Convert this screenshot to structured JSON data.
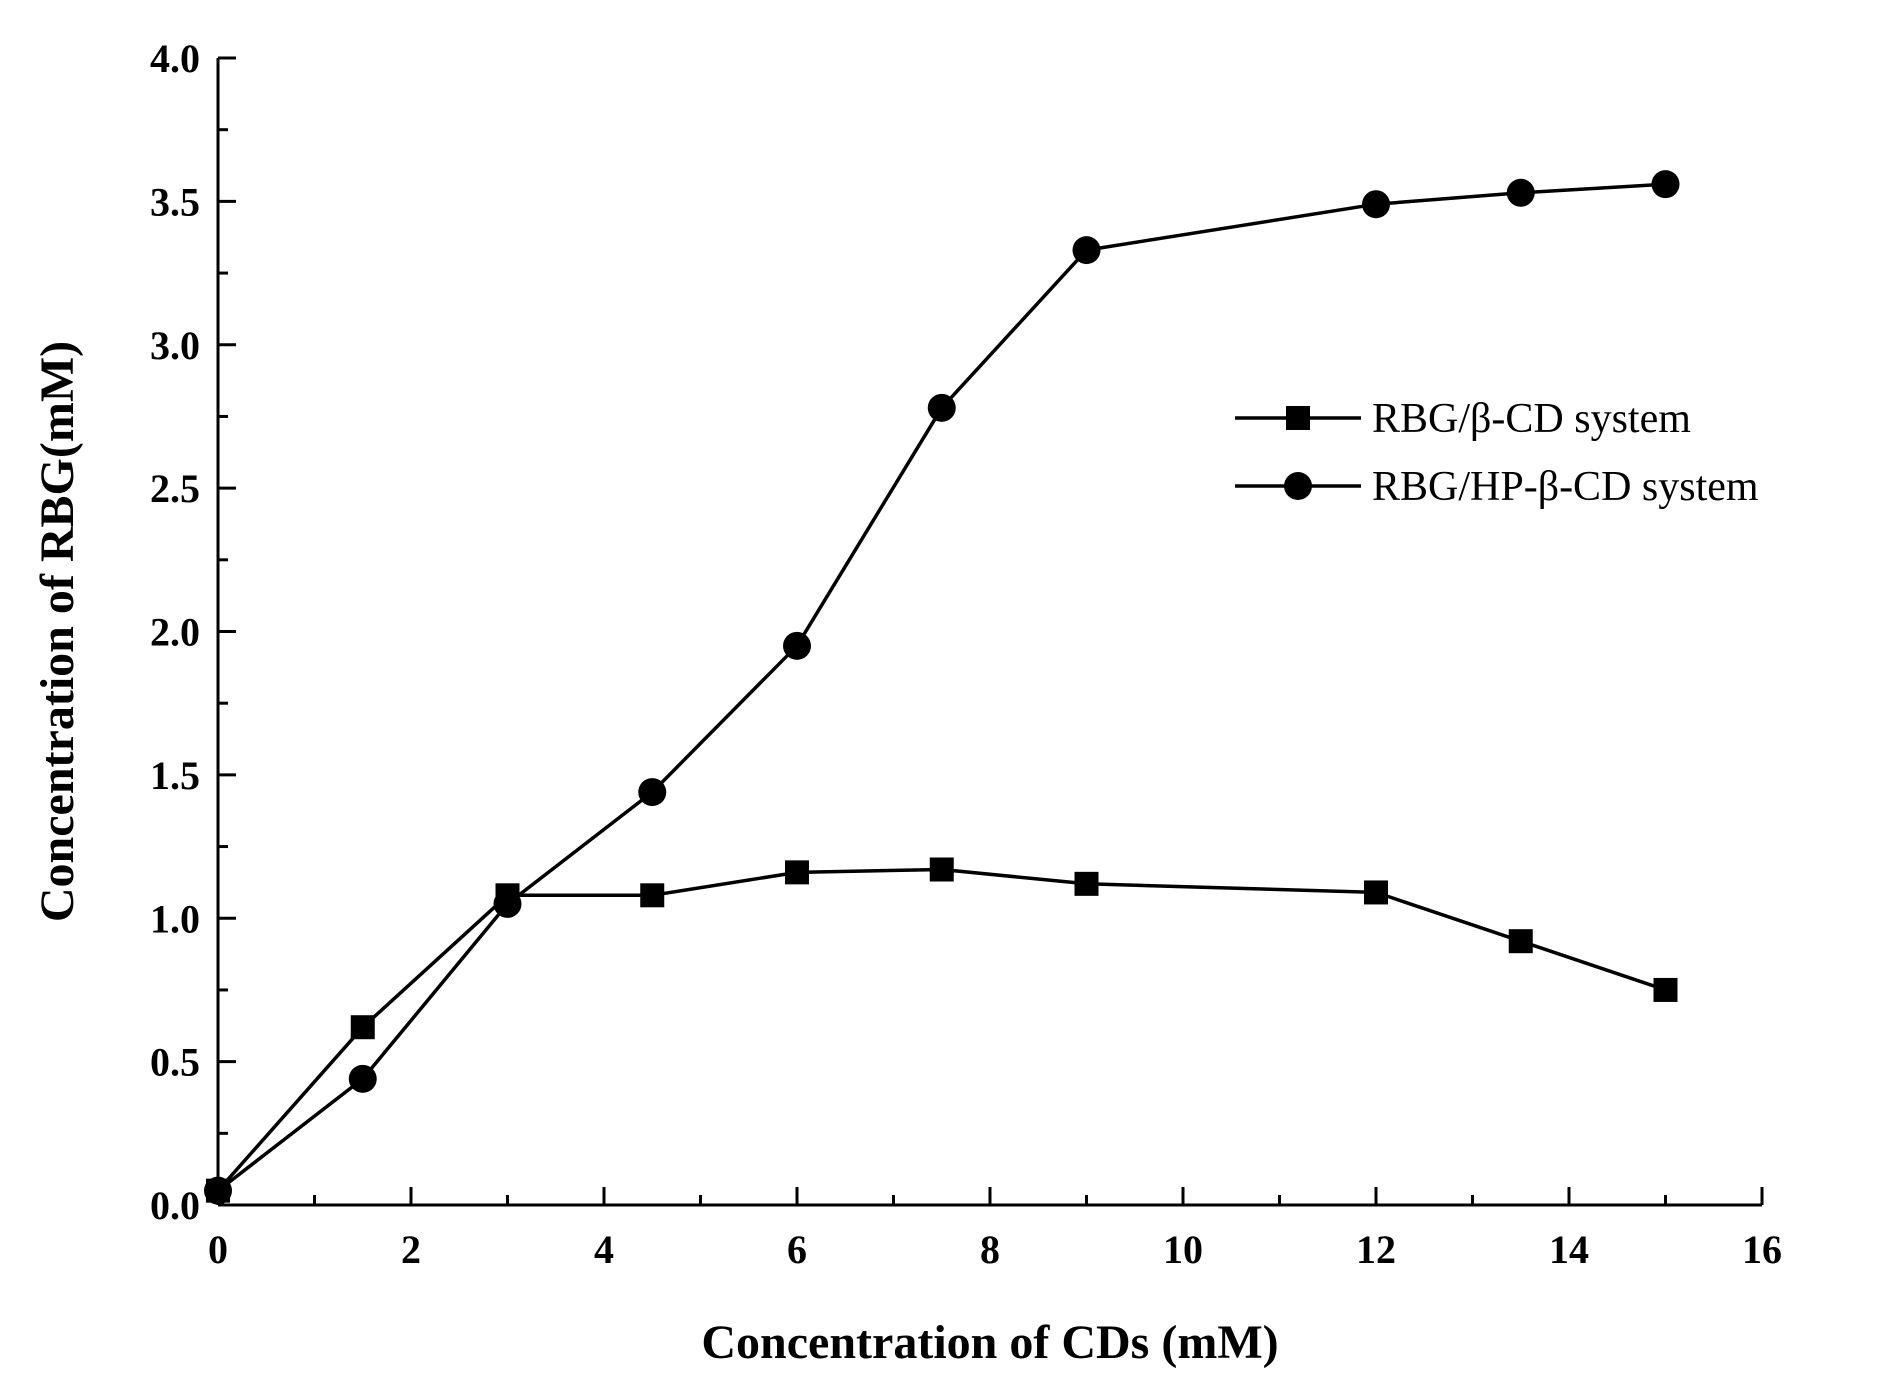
{
  "chart_data": {
    "type": "line",
    "title": "",
    "xlabel": "Concentration of CDs (mM)",
    "ylabel": "Concentration of RBG(mM)",
    "xlim": [
      0,
      16
    ],
    "ylim": [
      0,
      4.0
    ],
    "xticks": [
      0,
      2,
      4,
      6,
      8,
      10,
      12,
      14,
      16
    ],
    "xtick_labels": [
      "0",
      "2",
      "4",
      "6",
      "8",
      "10",
      "12",
      "14",
      "16"
    ],
    "yticks": [
      0,
      0.5,
      1.0,
      1.5,
      2.0,
      2.5,
      3.0,
      3.5,
      4.0
    ],
    "ytick_labels": [
      "0.0",
      "0.5",
      "1.0",
      "1.5",
      "2.0",
      "2.5",
      "3.0",
      "3.5",
      "4.0"
    ],
    "grid": false,
    "legend_position": "right",
    "series": [
      {
        "name": "RBG/β-CD system",
        "marker": "square",
        "color": "#000000",
        "x": [
          0,
          1.5,
          3,
          4.5,
          6,
          7.5,
          9,
          12,
          13.5,
          15
        ],
        "values": [
          0.05,
          0.62,
          1.08,
          1.08,
          1.16,
          1.17,
          1.12,
          1.09,
          0.92,
          0.75
        ]
      },
      {
        "name": "RBG/HP-β-CD system",
        "marker": "circle",
        "color": "#000000",
        "x": [
          0,
          1.5,
          3,
          4.5,
          6,
          7.5,
          9,
          12,
          13.5,
          15
        ],
        "values": [
          0.05,
          0.44,
          1.05,
          1.44,
          1.95,
          2.78,
          3.33,
          3.49,
          3.53,
          3.56
        ]
      }
    ]
  }
}
